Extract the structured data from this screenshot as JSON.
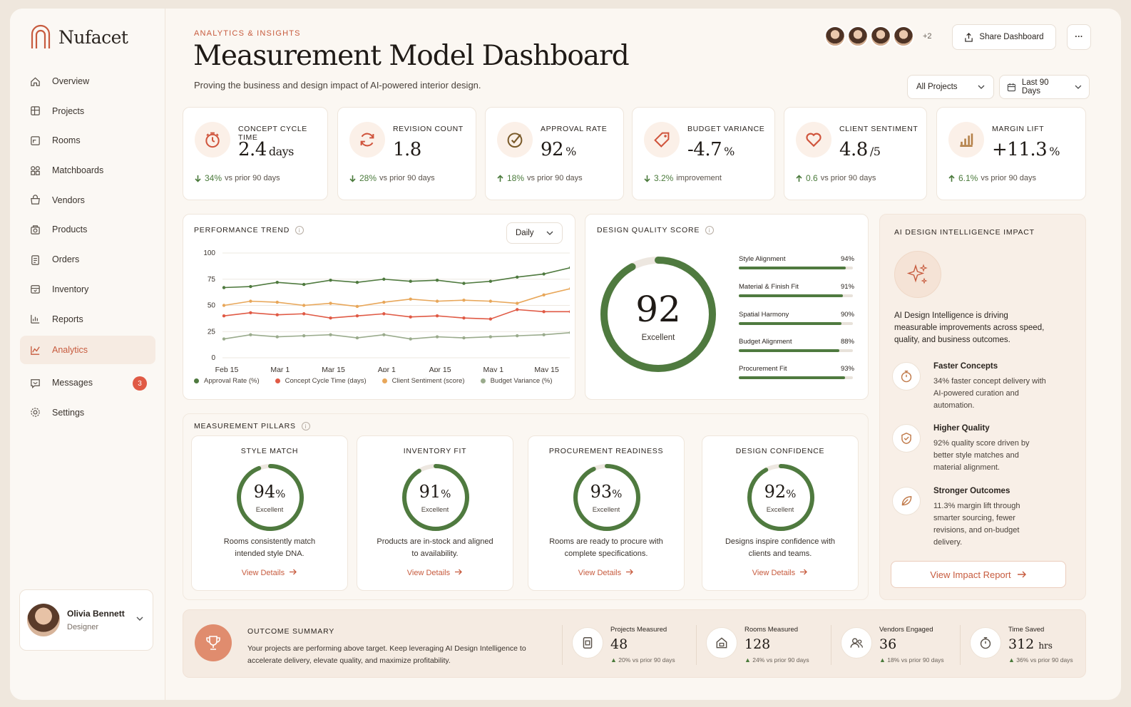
{
  "brand": {
    "name": "Nufacet",
    "accent": "#c75b3e",
    "green": "#4f7a3f"
  },
  "sidebar": {
    "items": [
      {
        "label": "Overview",
        "icon": "home-icon"
      },
      {
        "label": "Projects",
        "icon": "projects-icon"
      },
      {
        "label": "Rooms",
        "icon": "rooms-icon"
      },
      {
        "label": "Matchboards",
        "icon": "matchboards-icon"
      },
      {
        "label": "Vendors",
        "icon": "vendors-icon"
      },
      {
        "label": "Products",
        "icon": "products-icon"
      },
      {
        "label": "Orders",
        "icon": "orders-icon"
      },
      {
        "label": "Inventory",
        "icon": "inventory-icon"
      },
      {
        "label": "Reports",
        "icon": "reports-icon"
      },
      {
        "label": "Analytics",
        "icon": "analytics-icon",
        "active": true
      },
      {
        "label": "Messages",
        "icon": "messages-icon",
        "badge": "3"
      },
      {
        "label": "Settings",
        "icon": "settings-icon"
      }
    ],
    "user": {
      "name": "Olivia Bennett",
      "role": "Designer"
    }
  },
  "header": {
    "eyebrow": "ANALYTICS & INSIGHTS",
    "title": "Measurement Model Dashboard",
    "subtitle": "Proving the business and design impact of AI-powered interior design.",
    "collaborators_more": "+2",
    "share_label": "Share Dashboard",
    "more_label": "···",
    "project_filter": "All Projects",
    "date_filter": "Last 90 Days"
  },
  "kpis": [
    {
      "label": "CONCEPT CYCLE TIME",
      "value": "2.4",
      "unit": "days",
      "delta": "34%",
      "delta_dir": "down",
      "delta_text": "vs prior 90 days",
      "icon": "timer-icon"
    },
    {
      "label": "REVISION COUNT",
      "value": "1.8",
      "unit": "",
      "delta": "28%",
      "delta_dir": "down",
      "delta_text": "vs prior 90 days",
      "icon": "refresh-icon"
    },
    {
      "label": "APPROVAL RATE",
      "value": "92",
      "unit": "%",
      "delta": "18%",
      "delta_dir": "up",
      "delta_text": "vs prior 90 days",
      "icon": "check-circle-icon"
    },
    {
      "label": "BUDGET VARIANCE",
      "value": "-4.7",
      "unit": "%",
      "delta": "3.2%",
      "delta_dir": "down",
      "delta_text": "improvement",
      "icon": "tag-icon"
    },
    {
      "label": "CLIENT SENTIMENT",
      "value": "4.8",
      "unit": "/5",
      "delta": "0.6",
      "delta_dir": "up",
      "delta_text": "vs prior 90 days",
      "icon": "heart-icon"
    },
    {
      "label": "MARGIN LIFT",
      "value": "+11.3",
      "unit": "%",
      "delta": "6.1%",
      "delta_dir": "up",
      "delta_text": "vs prior 90 days",
      "icon": "bar-chart-icon"
    }
  ],
  "performance": {
    "title": "PERFORMANCE TREND",
    "granularity": "Daily"
  },
  "chart_data": {
    "type": "line",
    "x": [
      "Feb 15",
      "Feb 22",
      "Mar 1",
      "Mar 8",
      "Mar 15",
      "Mar 22",
      "Apr 1",
      "Apr 8",
      "Apr 15",
      "Apr 22",
      "May 1",
      "May 8",
      "May 15",
      "May 20"
    ],
    "x_ticks": [
      "Feb 15",
      "Mar 1",
      "Mar 15",
      "Apr 1",
      "Apr 15",
      "May 1",
      "May 15"
    ],
    "y_ticks": [
      0,
      25,
      50,
      75,
      100
    ],
    "ylim": [
      0,
      100
    ],
    "grid": true,
    "legend": "bottom",
    "series": [
      {
        "name": "Approval Rate (%)",
        "color": "#4f7a3f",
        "values": [
          67,
          68,
          72,
          70,
          74,
          72,
          75,
          73,
          74,
          71,
          73,
          77,
          80,
          86
        ]
      },
      {
        "name": "Concept Cycle Time (days)",
        "color": "#e05a45",
        "values": [
          40,
          43,
          41,
          42,
          38,
          40,
          42,
          39,
          40,
          38,
          37,
          46,
          44,
          44
        ]
      },
      {
        "name": "Client Sentiment (score)",
        "color": "#e8a75a",
        "values": [
          50,
          54,
          53,
          50,
          52,
          49,
          53,
          56,
          54,
          55,
          54,
          52,
          60,
          66
        ]
      },
      {
        "name": "Budget Variance (%)",
        "color": "#9aab8c",
        "values": [
          18,
          22,
          20,
          21,
          22,
          19,
          22,
          18,
          20,
          19,
          20,
          21,
          22,
          24
        ]
      }
    ]
  },
  "quality": {
    "title": "DESIGN QUALITY SCORE",
    "score": "92",
    "score_value": 92,
    "rating": "Excellent",
    "rows": [
      {
        "label": "Style Alignment",
        "value": "94%",
        "pct": 94
      },
      {
        "label": "Material & Finish Fit",
        "value": "91%",
        "pct": 91
      },
      {
        "label": "Spatial Harmony",
        "value": "90%",
        "pct": 90
      },
      {
        "label": "Budget Alignment",
        "value": "88%",
        "pct": 88
      },
      {
        "label": "Procurement Fit",
        "value": "93%",
        "pct": 93
      }
    ]
  },
  "pillars": {
    "title": "MEASUREMENT PILLARS",
    "items": [
      {
        "title": "STYLE MATCH",
        "value": "94",
        "pct": 94,
        "rating": "Excellent",
        "desc": "Rooms consistently match intended style DNA.",
        "link": "View Details"
      },
      {
        "title": "INVENTORY FIT",
        "value": "91",
        "pct": 91,
        "rating": "Excellent",
        "desc": "Products are in-stock and aligned to availability.",
        "link": "View Details"
      },
      {
        "title": "PROCUREMENT READINESS",
        "value": "93",
        "pct": 93,
        "rating": "Excellent",
        "desc": "Rooms are ready to procure with complete specifications.",
        "link": "View Details"
      },
      {
        "title": "DESIGN CONFIDENCE",
        "value": "92",
        "pct": 92,
        "rating": "Excellent",
        "desc": "Designs inspire confidence with clients and teams.",
        "link": "View Details"
      }
    ]
  },
  "ai": {
    "title": "AI DESIGN INTELLIGENCE IMPACT",
    "intro": "AI Design Intelligence is driving measurable improvements across speed, quality, and business outcomes.",
    "items": [
      {
        "title": "Faster Concepts",
        "desc": "34% faster concept delivery with AI-powered curation and automation.",
        "icon": "stopwatch-icon"
      },
      {
        "title": "Higher Quality",
        "desc": "92% quality score driven by better style matches and material alignment.",
        "icon": "badge-check-icon"
      },
      {
        "title": "Stronger Outcomes",
        "desc": "11.3% margin lift through smarter sourcing, fewer revisions, and on-budget delivery.",
        "icon": "leaf-icon"
      }
    ],
    "cta": "View Impact Report"
  },
  "outcome": {
    "title": "OUTCOME SUMMARY",
    "text": "Your projects are performing above target. Keep leveraging AI Design Intelligence to accelerate delivery, elevate quality, and maximize profitability.",
    "stats": [
      {
        "label": "Projects Measured",
        "value": "48",
        "unit": "",
        "delta": "20%",
        "delta_text": "vs prior 90 days",
        "icon": "document-icon"
      },
      {
        "label": "Rooms Measured",
        "value": "128",
        "unit": "",
        "delta": "24%",
        "delta_text": "vs prior 90 days",
        "icon": "room-icon"
      },
      {
        "label": "Vendors Engaged",
        "value": "36",
        "unit": "",
        "delta": "18%",
        "delta_text": "vs prior 90 days",
        "icon": "users-icon"
      },
      {
        "label": "Time Saved",
        "value": "312",
        "unit": "hrs",
        "delta": "36%",
        "delta_text": "vs prior 90 days",
        "icon": "stopwatch-icon"
      }
    ]
  }
}
